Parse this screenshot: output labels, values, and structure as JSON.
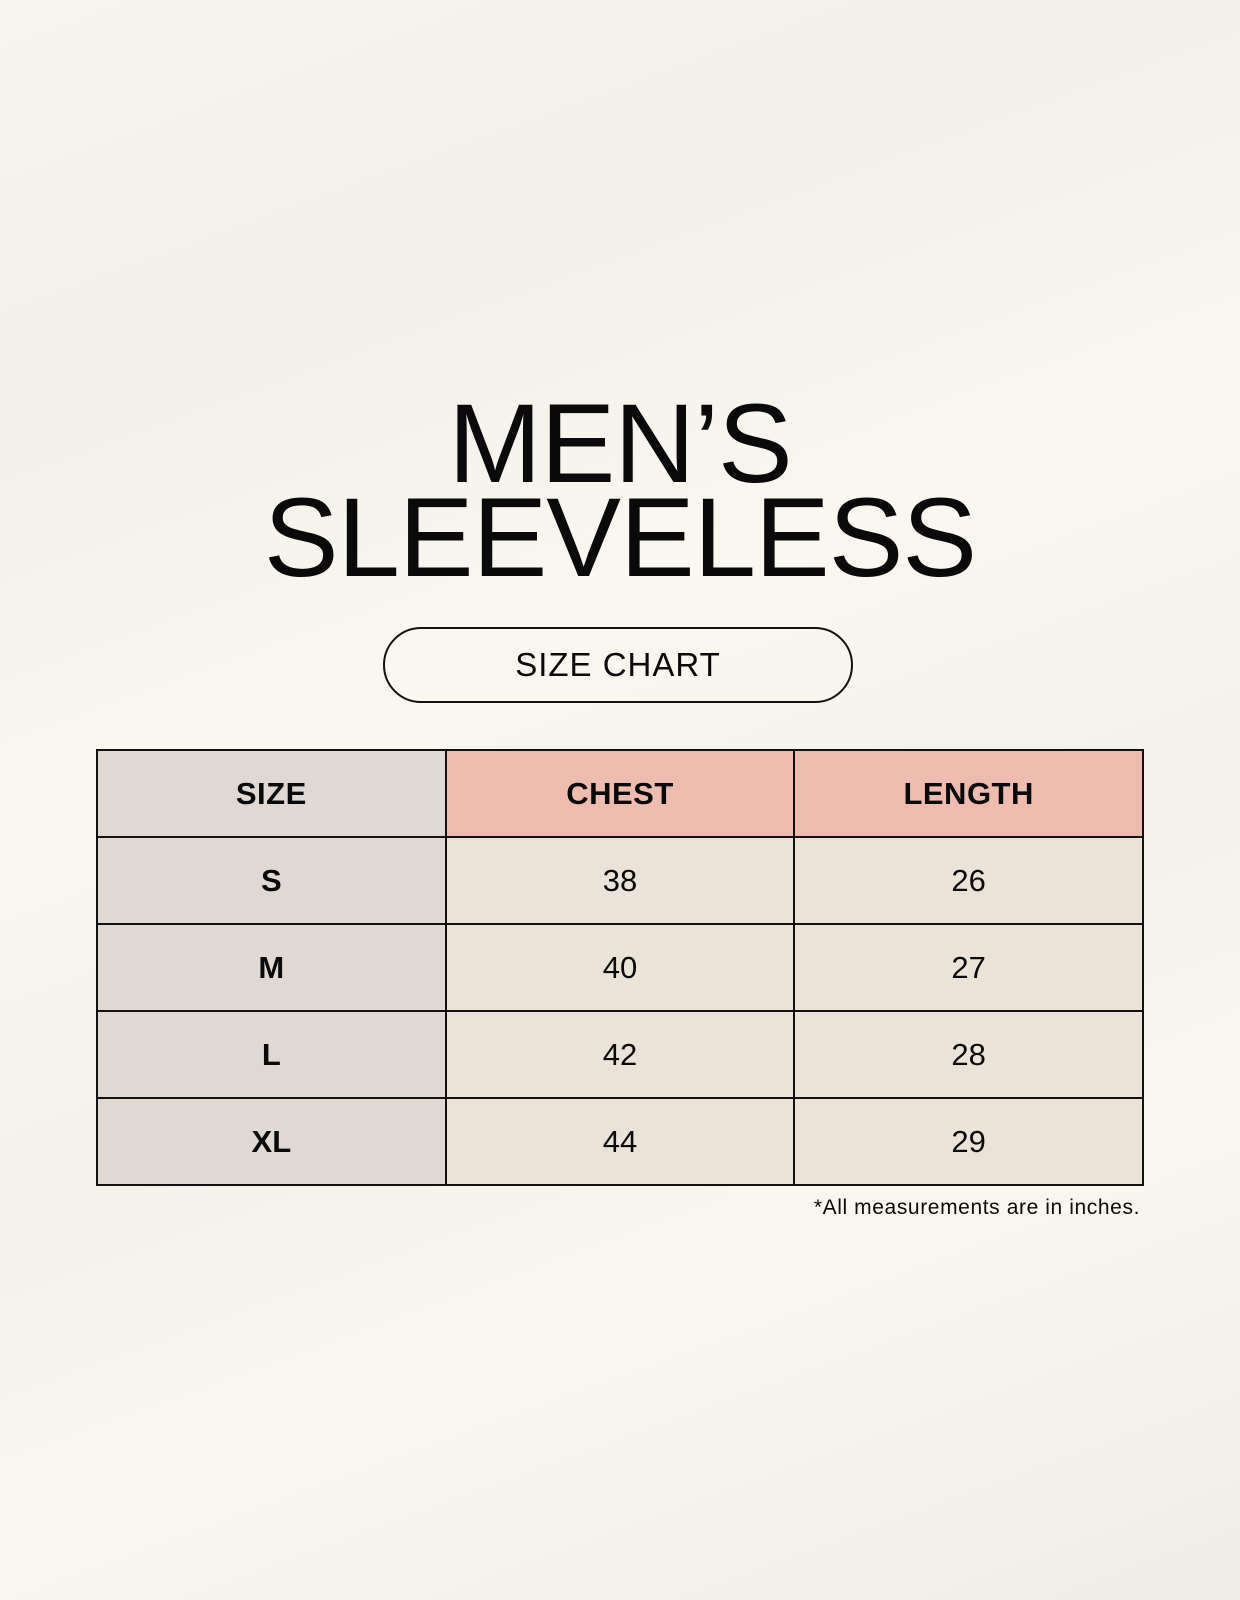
{
  "title": {
    "line1": "MEN’S",
    "line2": "SLEEVELESS"
  },
  "subtitle": "SIZE CHART",
  "colors": {
    "size_column": "#e0d8d3",
    "header_accent": "#eebcae",
    "value_cells": "#ebe3d8",
    "border": "#111111"
  },
  "table": {
    "headers": [
      "SIZE",
      "CHEST",
      "LENGTH"
    ],
    "rows": [
      [
        "S",
        "38",
        "26"
      ],
      [
        "M",
        "40",
        "27"
      ],
      [
        "L",
        "42",
        "28"
      ],
      [
        "XL",
        "44",
        "29"
      ]
    ]
  },
  "footnote": "*All measurements are in inches."
}
